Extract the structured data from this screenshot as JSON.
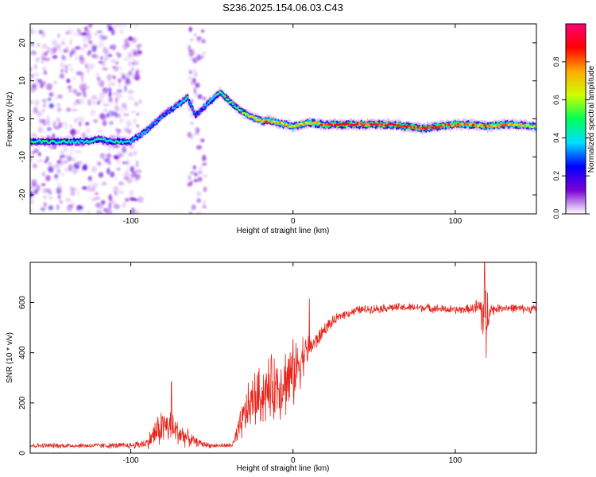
{
  "title": "S236.2025.154.06.03.C43",
  "chart_data": [
    {
      "type": "heatmap",
      "xlabel": "Height of straight line (km)",
      "ylabel": "Frequency (Hz)",
      "xlim": [
        -162,
        150
      ],
      "ylim": [
        -25,
        25
      ],
      "xticks": [
        -100,
        0,
        100
      ],
      "yticks": [
        -20,
        -10,
        0,
        10,
        20
      ],
      "colorbar": {
        "label": "Normalized spectral amplitude",
        "range": [
          0,
          1
        ],
        "ticks": [
          "0.0",
          "0.2",
          "0.4",
          "0.6",
          "0.8"
        ],
        "stops": [
          "#ffffff",
          "#7a00d6",
          "#0000ff",
          "#00dfff",
          "#00ff55",
          "#d0ff00",
          "#ffaa00",
          "#ff0000",
          "#ff0077"
        ]
      },
      "ridge": {
        "x": [
          -162,
          -150,
          -140,
          -130,
          -120,
          -110,
          -100,
          -95,
          -90,
          -85,
          -80,
          -75,
          -70,
          -65,
          -60,
          -55,
          -50,
          -45,
          -40,
          -35,
          -30,
          -25,
          -20,
          -15,
          -10,
          -5,
          0,
          10,
          20,
          30,
          40,
          50,
          60,
          70,
          80,
          90,
          100,
          110,
          120,
          130,
          140,
          150
        ],
        "y": [
          -6,
          -6,
          -6,
          -6,
          -5.5,
          -6,
          -6,
          -4.5,
          -3,
          -1,
          1,
          2.5,
          4,
          5.5,
          1,
          3,
          5,
          7,
          5,
          3,
          1.5,
          0.5,
          -0.5,
          -0.5,
          -1,
          -1.5,
          -2,
          -1,
          -1.5,
          -1.5,
          -1.5,
          -1.5,
          -1.5,
          -2,
          -2.5,
          -2,
          -1.5,
          -1.5,
          -2,
          -1.5,
          -1.5,
          -2
        ],
        "amplitude": [
          0.45,
          0.45,
          0.45,
          0.4,
          0.45,
          0.45,
          0.4,
          0.35,
          0.35,
          0.35,
          0.3,
          0.3,
          0.35,
          0.4,
          0.25,
          0.3,
          0.4,
          0.5,
          0.5,
          0.5,
          0.55,
          0.6,
          0.7,
          0.75,
          0.7,
          0.7,
          0.65,
          0.75,
          0.85,
          0.9,
          0.9,
          0.9,
          0.85,
          0.85,
          0.85,
          0.8,
          0.8,
          0.75,
          0.8,
          0.75,
          0.7,
          0.65
        ]
      }
    },
    {
      "type": "line",
      "xlabel": "Height of straight line (km)",
      "ylabel": "SNR (10 * v/v)",
      "xlim": [
        -162,
        150
      ],
      "ylim": [
        0,
        760
      ],
      "xticks": [
        -100,
        0,
        100
      ],
      "yticks": [
        0,
        200,
        400,
        600
      ],
      "color": "#e8261c",
      "envelope": {
        "x": [
          -162,
          -140,
          -120,
          -100,
          -90,
          -85,
          -80,
          -75,
          -70,
          -65,
          -60,
          -55,
          -50,
          -45,
          -40,
          -37,
          -35,
          -30,
          -25,
          -20,
          -15,
          -10,
          -5,
          0,
          5,
          10,
          15,
          20,
          30,
          40,
          50,
          60,
          70,
          80,
          90,
          100,
          110,
          115,
          117,
          119,
          121,
          123,
          125,
          130,
          140,
          150
        ],
        "mean": [
          30,
          30,
          30,
          30,
          40,
          80,
          110,
          100,
          80,
          60,
          45,
          35,
          30,
          30,
          30,
          35,
          60,
          150,
          210,
          230,
          250,
          270,
          290,
          310,
          380,
          420,
          450,
          500,
          550,
          570,
          575,
          580,
          580,
          580,
          575,
          570,
          575,
          580,
          560,
          540,
          580,
          570,
          575,
          580,
          575,
          575
        ],
        "amp": [
          12,
          12,
          12,
          15,
          25,
          70,
          90,
          80,
          60,
          40,
          20,
          15,
          10,
          10,
          10,
          20,
          50,
          100,
          130,
          140,
          150,
          160,
          170,
          160,
          120,
          60,
          40,
          30,
          20,
          20,
          20,
          20,
          20,
          20,
          20,
          20,
          20,
          60,
          170,
          160,
          60,
          30,
          20,
          20,
          20,
          20
        ]
      },
      "peaks": [
        {
          "x": -75,
          "y": 285
        },
        {
          "x": 10,
          "y": 615
        },
        {
          "x": 118,
          "y": 760
        },
        {
          "x": 119,
          "y": 380
        }
      ]
    }
  ]
}
